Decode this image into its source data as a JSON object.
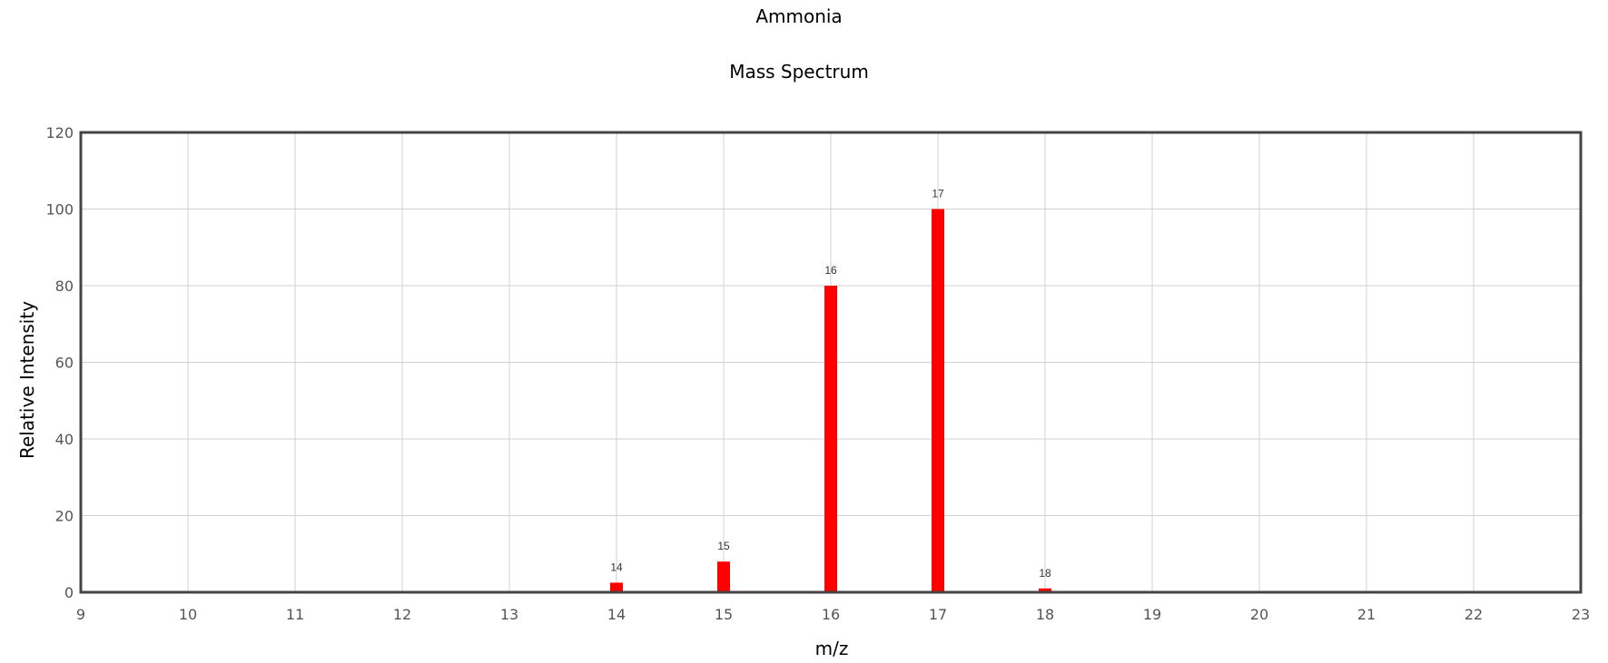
{
  "chart_data": {
    "type": "bar",
    "title": "Ammonia",
    "subtitle": "Mass Spectrum",
    "xlabel": "m/z",
    "ylabel": "Relative Intensity",
    "xlim": [
      9,
      23
    ],
    "ylim": [
      0,
      120
    ],
    "x_ticks": [
      9,
      10,
      11,
      12,
      13,
      14,
      15,
      16,
      17,
      18,
      19,
      20,
      21,
      22,
      23
    ],
    "y_ticks": [
      0,
      20,
      40,
      60,
      80,
      100,
      120
    ],
    "grid": true,
    "legend": "none",
    "bar_color": "#ff0000",
    "points": [
      {
        "x": 14,
        "y": 2.5,
        "label": "14"
      },
      {
        "x": 15,
        "y": 8,
        "label": "15"
      },
      {
        "x": 16,
        "y": 80,
        "label": "16"
      },
      {
        "x": 17,
        "y": 100,
        "label": "17"
      },
      {
        "x": 18,
        "y": 1,
        "label": "18"
      }
    ]
  }
}
